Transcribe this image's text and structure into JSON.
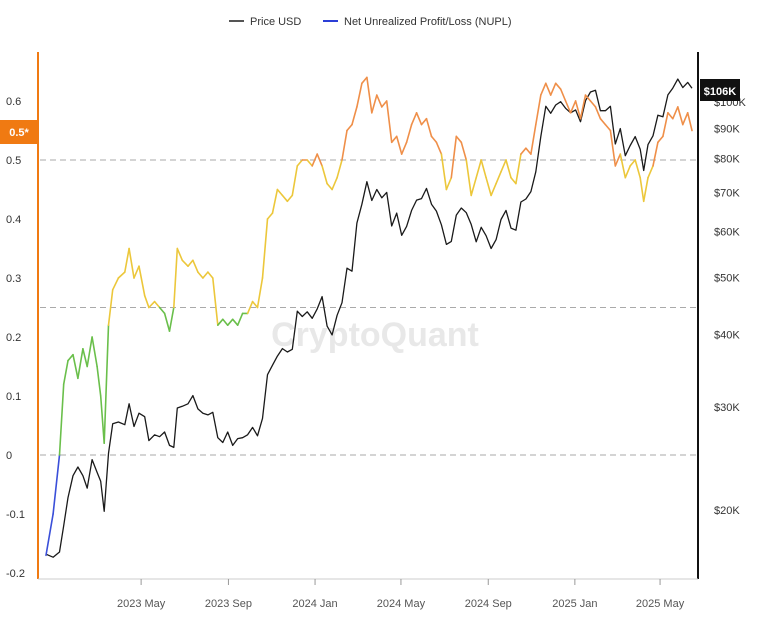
{
  "chart_data": {
    "type": "line",
    "legend": {
      "placement": "top-center",
      "items": [
        {
          "label": "Price USD",
          "color": "#555555"
        },
        {
          "label": "Net Unrealized Profit/Loss (NUPL)",
          "color": "#2b3ed6"
        }
      ]
    },
    "watermark": "CryptoQuant",
    "x_ticks": [
      "2023 May",
      "2023 Sep",
      "2024 Jan",
      "2024 May",
      "2024 Sep",
      "2025 Jan",
      "2025 May"
    ],
    "x_range": [
      "2022-12-18",
      "2025-06-15"
    ],
    "left_axis": {
      "ticks": [
        "0.6",
        "0.5",
        "0.4",
        "0.3",
        "0.2",
        "0.1",
        "0",
        "-0.1",
        "-0.2"
      ],
      "range": [
        -0.2,
        0.65
      ],
      "badge": "0.5*",
      "color": "#f07a12",
      "reference_lines": [
        0.5,
        0.25,
        0
      ]
    },
    "right_axis": {
      "ticks": [
        "$100K",
        "$90K",
        "$80K",
        "$70K",
        "$60K",
        "$50K",
        "$40K",
        "$30K",
        "$20K"
      ],
      "scale": "log",
      "badge": "$106K",
      "color": "#111111"
    },
    "nupl_color_bands": [
      {
        "from": -1,
        "to": 0,
        "color": "#3a4fd9"
      },
      {
        "from": 0,
        "to": 0.25,
        "color": "#6abf4b"
      },
      {
        "from": 0.25,
        "to": 0.5,
        "color": "#ecc73b"
      },
      {
        "from": 0.5,
        "to": 1,
        "color": "#ef8f49"
      }
    ],
    "series": [
      {
        "name": "Net Unrealized Profit/Loss (NUPL)",
        "axis": "left",
        "points": [
          [
            "2022-12-18",
            -0.17
          ],
          [
            "2022-12-28",
            -0.1
          ],
          [
            "2023-01-06",
            0.0
          ],
          [
            "2023-01-12",
            0.12
          ],
          [
            "2023-01-18",
            0.16
          ],
          [
            "2023-01-25",
            0.17
          ],
          [
            "2023-02-01",
            0.13
          ],
          [
            "2023-02-08",
            0.18
          ],
          [
            "2023-02-14",
            0.15
          ],
          [
            "2023-02-21",
            0.2
          ],
          [
            "2023-02-28",
            0.15
          ],
          [
            "2023-03-05",
            0.1
          ],
          [
            "2023-03-10",
            0.02
          ],
          [
            "2023-03-16",
            0.22
          ],
          [
            "2023-03-22",
            0.28
          ],
          [
            "2023-03-30",
            0.3
          ],
          [
            "2023-04-08",
            0.31
          ],
          [
            "2023-04-14",
            0.35
          ],
          [
            "2023-04-21",
            0.3
          ],
          [
            "2023-04-28",
            0.32
          ],
          [
            "2023-05-06",
            0.27
          ],
          [
            "2023-05-12",
            0.25
          ],
          [
            "2023-05-20",
            0.26
          ],
          [
            "2023-05-27",
            0.25
          ],
          [
            "2023-06-03",
            0.24
          ],
          [
            "2023-06-10",
            0.21
          ],
          [
            "2023-06-16",
            0.25
          ],
          [
            "2023-06-21",
            0.35
          ],
          [
            "2023-06-28",
            0.33
          ],
          [
            "2023-07-06",
            0.32
          ],
          [
            "2023-07-13",
            0.33
          ],
          [
            "2023-07-20",
            0.31
          ],
          [
            "2023-07-27",
            0.3
          ],
          [
            "2023-08-03",
            0.31
          ],
          [
            "2023-08-10",
            0.3
          ],
          [
            "2023-08-17",
            0.22
          ],
          [
            "2023-08-24",
            0.23
          ],
          [
            "2023-08-31",
            0.22
          ],
          [
            "2023-09-07",
            0.23
          ],
          [
            "2023-09-14",
            0.22
          ],
          [
            "2023-09-21",
            0.24
          ],
          [
            "2023-09-28",
            0.24
          ],
          [
            "2023-10-05",
            0.26
          ],
          [
            "2023-10-12",
            0.25
          ],
          [
            "2023-10-19",
            0.3
          ],
          [
            "2023-10-26",
            0.4
          ],
          [
            "2023-11-02",
            0.41
          ],
          [
            "2023-11-09",
            0.45
          ],
          [
            "2023-11-16",
            0.44
          ],
          [
            "2023-11-23",
            0.43
          ],
          [
            "2023-11-30",
            0.44
          ],
          [
            "2023-12-07",
            0.49
          ],
          [
            "2023-12-14",
            0.5
          ],
          [
            "2023-12-21",
            0.5
          ],
          [
            "2023-12-28",
            0.49
          ],
          [
            "2024-01-04",
            0.51
          ],
          [
            "2024-01-11",
            0.49
          ],
          [
            "2024-01-18",
            0.46
          ],
          [
            "2024-01-25",
            0.45
          ],
          [
            "2024-02-01",
            0.47
          ],
          [
            "2024-02-08",
            0.5
          ],
          [
            "2024-02-15",
            0.55
          ],
          [
            "2024-02-22",
            0.56
          ],
          [
            "2024-02-29",
            0.59
          ],
          [
            "2024-03-07",
            0.63
          ],
          [
            "2024-03-14",
            0.64
          ],
          [
            "2024-03-21",
            0.58
          ],
          [
            "2024-03-28",
            0.61
          ],
          [
            "2024-04-04",
            0.59
          ],
          [
            "2024-04-11",
            0.6
          ],
          [
            "2024-04-18",
            0.53
          ],
          [
            "2024-04-25",
            0.54
          ],
          [
            "2024-05-02",
            0.51
          ],
          [
            "2024-05-09",
            0.53
          ],
          [
            "2024-05-16",
            0.56
          ],
          [
            "2024-05-23",
            0.58
          ],
          [
            "2024-05-30",
            0.56
          ],
          [
            "2024-06-06",
            0.57
          ],
          [
            "2024-06-13",
            0.54
          ],
          [
            "2024-06-20",
            0.53
          ],
          [
            "2024-06-27",
            0.51
          ],
          [
            "2024-07-04",
            0.45
          ],
          [
            "2024-07-11",
            0.47
          ],
          [
            "2024-07-18",
            0.54
          ],
          [
            "2024-07-25",
            0.53
          ],
          [
            "2024-08-01",
            0.5
          ],
          [
            "2024-08-08",
            0.44
          ],
          [
            "2024-08-15",
            0.47
          ],
          [
            "2024-08-22",
            0.5
          ],
          [
            "2024-08-29",
            0.47
          ],
          [
            "2024-09-05",
            0.44
          ],
          [
            "2024-09-12",
            0.46
          ],
          [
            "2024-09-19",
            0.48
          ],
          [
            "2024-09-26",
            0.5
          ],
          [
            "2024-10-03",
            0.47
          ],
          [
            "2024-10-10",
            0.46
          ],
          [
            "2024-10-17",
            0.51
          ],
          [
            "2024-10-24",
            0.52
          ],
          [
            "2024-10-31",
            0.51
          ],
          [
            "2024-11-07",
            0.56
          ],
          [
            "2024-11-14",
            0.61
          ],
          [
            "2024-11-21",
            0.63
          ],
          [
            "2024-11-28",
            0.61
          ],
          [
            "2024-12-05",
            0.63
          ],
          [
            "2024-12-12",
            0.62
          ],
          [
            "2024-12-19",
            0.6
          ],
          [
            "2024-12-26",
            0.58
          ],
          [
            "2025-01-02",
            0.6
          ],
          [
            "2025-01-09",
            0.57
          ],
          [
            "2025-01-16",
            0.61
          ],
          [
            "2025-01-23",
            0.6
          ],
          [
            "2025-01-30",
            0.59
          ],
          [
            "2025-02-06",
            0.57
          ],
          [
            "2025-02-13",
            0.56
          ],
          [
            "2025-02-20",
            0.55
          ],
          [
            "2025-02-27",
            0.49
          ],
          [
            "2025-03-06",
            0.51
          ],
          [
            "2025-03-13",
            0.47
          ],
          [
            "2025-03-20",
            0.49
          ],
          [
            "2025-03-27",
            0.5
          ],
          [
            "2025-04-03",
            0.47
          ],
          [
            "2025-04-08",
            0.43
          ],
          [
            "2025-04-14",
            0.47
          ],
          [
            "2025-04-21",
            0.49
          ],
          [
            "2025-04-28",
            0.53
          ],
          [
            "2025-05-05",
            0.54
          ],
          [
            "2025-05-12",
            0.58
          ],
          [
            "2025-05-19",
            0.57
          ],
          [
            "2025-05-26",
            0.59
          ],
          [
            "2025-06-02",
            0.56
          ],
          [
            "2025-06-09",
            0.58
          ],
          [
            "2025-06-15",
            0.55
          ]
        ]
      },
      {
        "name": "Price USD",
        "axis": "right",
        "color": "#1a1a1a",
        "points": [
          [
            "2022-12-18",
            16800
          ],
          [
            "2022-12-28",
            16600
          ],
          [
            "2023-01-06",
            16950
          ],
          [
            "2023-01-12",
            18800
          ],
          [
            "2023-01-18",
            21000
          ],
          [
            "2023-01-25",
            22900
          ],
          [
            "2023-02-01",
            23700
          ],
          [
            "2023-02-08",
            22900
          ],
          [
            "2023-02-14",
            21800
          ],
          [
            "2023-02-21",
            24400
          ],
          [
            "2023-02-28",
            23200
          ],
          [
            "2023-03-05",
            22400
          ],
          [
            "2023-03-10",
            19900
          ],
          [
            "2023-03-16",
            25000
          ],
          [
            "2023-03-22",
            28100
          ],
          [
            "2023-03-30",
            28300
          ],
          [
            "2023-04-08",
            28000
          ],
          [
            "2023-04-14",
            30400
          ],
          [
            "2023-04-21",
            27800
          ],
          [
            "2023-04-28",
            29300
          ],
          [
            "2023-05-06",
            28900
          ],
          [
            "2023-05-12",
            26300
          ],
          [
            "2023-05-20",
            26900
          ],
          [
            "2023-05-27",
            26700
          ],
          [
            "2023-06-03",
            27200
          ],
          [
            "2023-06-10",
            25800
          ],
          [
            "2023-06-16",
            25600
          ],
          [
            "2023-06-21",
            29900
          ],
          [
            "2023-06-28",
            30100
          ],
          [
            "2023-07-06",
            30400
          ],
          [
            "2023-07-13",
            31400
          ],
          [
            "2023-07-20",
            29800
          ],
          [
            "2023-07-27",
            29300
          ],
          [
            "2023-08-03",
            29100
          ],
          [
            "2023-08-10",
            29400
          ],
          [
            "2023-08-17",
            26600
          ],
          [
            "2023-08-24",
            26100
          ],
          [
            "2023-08-31",
            27200
          ],
          [
            "2023-09-07",
            25800
          ],
          [
            "2023-09-14",
            26500
          ],
          [
            "2023-09-21",
            26600
          ],
          [
            "2023-09-28",
            26900
          ],
          [
            "2023-10-05",
            27700
          ],
          [
            "2023-10-12",
            26800
          ],
          [
            "2023-10-19",
            28700
          ],
          [
            "2023-10-26",
            34100
          ],
          [
            "2023-11-02",
            35400
          ],
          [
            "2023-11-09",
            36700
          ],
          [
            "2023-11-16",
            37800
          ],
          [
            "2023-11-23",
            37300
          ],
          [
            "2023-11-30",
            37700
          ],
          [
            "2023-12-07",
            43800
          ],
          [
            "2023-12-14",
            42900
          ],
          [
            "2023-12-21",
            43700
          ],
          [
            "2023-12-28",
            42600
          ],
          [
            "2024-01-04",
            44200
          ],
          [
            "2024-01-11",
            46400
          ],
          [
            "2024-01-18",
            41300
          ],
          [
            "2024-01-25",
            39900
          ],
          [
            "2024-02-01",
            43100
          ],
          [
            "2024-02-08",
            45300
          ],
          [
            "2024-02-15",
            51900
          ],
          [
            "2024-02-22",
            51300
          ],
          [
            "2024-02-29",
            62000
          ],
          [
            "2024-03-07",
            66800
          ],
          [
            "2024-03-14",
            73000
          ],
          [
            "2024-03-21",
            67800
          ],
          [
            "2024-03-28",
            70800
          ],
          [
            "2024-04-04",
            68500
          ],
          [
            "2024-04-11",
            70000
          ],
          [
            "2024-04-18",
            61300
          ],
          [
            "2024-04-25",
            64500
          ],
          [
            "2024-05-02",
            59100
          ],
          [
            "2024-05-09",
            61200
          ],
          [
            "2024-05-16",
            65200
          ],
          [
            "2024-05-23",
            67900
          ],
          [
            "2024-05-30",
            68300
          ],
          [
            "2024-06-06",
            71100
          ],
          [
            "2024-06-13",
            66800
          ],
          [
            "2024-06-20",
            65000
          ],
          [
            "2024-06-27",
            61600
          ],
          [
            "2024-07-04",
            57000
          ],
          [
            "2024-07-11",
            57700
          ],
          [
            "2024-07-18",
            64000
          ],
          [
            "2024-07-25",
            65800
          ],
          [
            "2024-08-01",
            64600
          ],
          [
            "2024-08-08",
            61700
          ],
          [
            "2024-08-15",
            57600
          ],
          [
            "2024-08-22",
            61000
          ],
          [
            "2024-08-29",
            59000
          ],
          [
            "2024-09-05",
            56100
          ],
          [
            "2024-09-12",
            58100
          ],
          [
            "2024-09-19",
            62900
          ],
          [
            "2024-09-26",
            65200
          ],
          [
            "2024-10-03",
            60800
          ],
          [
            "2024-10-10",
            60300
          ],
          [
            "2024-10-17",
            67400
          ],
          [
            "2024-10-24",
            68200
          ],
          [
            "2024-10-31",
            70200
          ],
          [
            "2024-11-07",
            75900
          ],
          [
            "2024-11-14",
            87200
          ],
          [
            "2024-11-21",
            98300
          ],
          [
            "2024-11-28",
            95600
          ],
          [
            "2024-12-05",
            98800
          ],
          [
            "2024-12-12",
            100100
          ],
          [
            "2024-12-19",
            97500
          ],
          [
            "2024-12-26",
            95800
          ],
          [
            "2025-01-02",
            96900
          ],
          [
            "2025-01-09",
            92500
          ],
          [
            "2025-01-16",
            100500
          ],
          [
            "2025-01-23",
            104000
          ],
          [
            "2025-01-30",
            104700
          ],
          [
            "2025-02-06",
            96600
          ],
          [
            "2025-02-13",
            96600
          ],
          [
            "2025-02-20",
            98300
          ],
          [
            "2025-02-27",
            84700
          ],
          [
            "2025-03-06",
            90000
          ],
          [
            "2025-03-13",
            80900
          ],
          [
            "2025-03-20",
            84200
          ],
          [
            "2025-03-27",
            87200
          ],
          [
            "2025-04-03",
            83000
          ],
          [
            "2025-04-08",
            76300
          ],
          [
            "2025-04-14",
            84500
          ],
          [
            "2025-04-21",
            87500
          ],
          [
            "2025-04-28",
            94900
          ],
          [
            "2025-05-05",
            94300
          ],
          [
            "2025-05-12",
            102800
          ],
          [
            "2025-05-19",
            105600
          ],
          [
            "2025-05-26",
            109400
          ],
          [
            "2025-06-02",
            105800
          ],
          [
            "2025-06-09",
            108000
          ],
          [
            "2025-06-15",
            105500
          ]
        ]
      }
    ]
  }
}
